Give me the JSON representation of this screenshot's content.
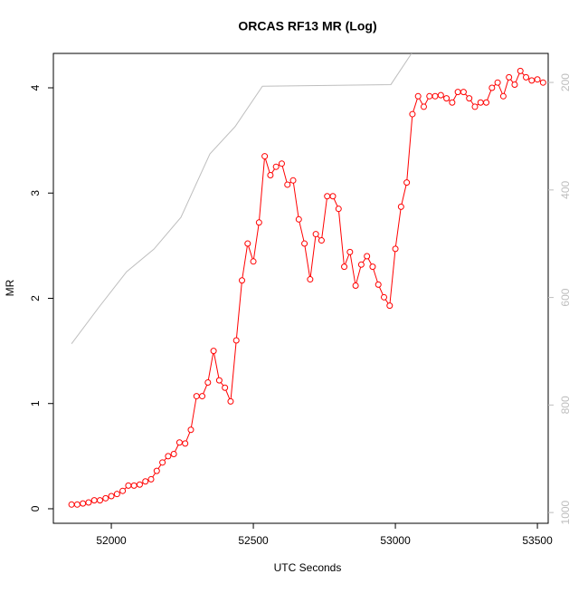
{
  "chart_data": {
    "type": "line",
    "title": "ORCAS RF13 MR (Log)",
    "x_label": "UTC Seconds",
    "y_label": "MR",
    "xlim": [
      51796,
      53538
    ],
    "xticks": [
      52000,
      52500,
      53000,
      53500
    ],
    "ylim": [
      -0.138,
      4.327
    ],
    "yticks": [
      0,
      1,
      2,
      3,
      4
    ],
    "y2lim": [
      1020,
      146
    ],
    "y2ticks": [
      200,
      400,
      600,
      800,
      1000
    ],
    "series": [
      {
        "color": "#ff0000",
        "marker": "circle",
        "x": [
          51860,
          51880,
          51900,
          51920,
          51940,
          51960,
          51980,
          52000,
          52020,
          52040,
          52060,
          52080,
          52100,
          52120,
          52140,
          52160,
          52180,
          52200,
          52220,
          52240,
          52260,
          52280,
          52300,
          52320,
          52340,
          52360,
          52380,
          52400,
          52420,
          52440,
          52460,
          52480,
          52500,
          52520,
          52540,
          52560,
          52580,
          52600,
          52620,
          52640,
          52660,
          52680,
          52700,
          52720,
          52740,
          52760,
          52780,
          52800,
          52820,
          52840,
          52860,
          52880,
          52900,
          52920,
          52940,
          52960,
          52980,
          53000,
          53020,
          53040,
          53060,
          53080,
          53100,
          53120,
          53140,
          53160,
          53180,
          53200,
          53220,
          53240,
          53260,
          53280,
          53300,
          53320,
          53340,
          53360,
          53380,
          53400,
          53420,
          53440,
          53460,
          53480,
          53500,
          53520
        ],
        "values": [
          0.04,
          0.04,
          0.05,
          0.06,
          0.08,
          0.08,
          0.1,
          0.12,
          0.14,
          0.17,
          0.22,
          0.22,
          0.23,
          0.26,
          0.28,
          0.36,
          0.44,
          0.5,
          0.52,
          0.63,
          0.62,
          0.75,
          1.07,
          1.07,
          1.2,
          1.5,
          1.22,
          1.15,
          1.02,
          1.6,
          2.17,
          2.52,
          2.35,
          2.72,
          3.35,
          3.17,
          3.25,
          3.28,
          3.08,
          3.12,
          2.75,
          2.52,
          2.18,
          2.61,
          2.55,
          2.97,
          2.97,
          2.85,
          2.3,
          2.44,
          2.12,
          2.32,
          2.4,
          2.3,
          2.13,
          2.01,
          1.93,
          2.47,
          2.87,
          3.1,
          3.75,
          3.92,
          3.82,
          3.92,
          3.92,
          3.93,
          3.9,
          3.86,
          3.96,
          3.96,
          3.9,
          3.82,
          3.86,
          3.86,
          4.0,
          4.05,
          3.92,
          4.1,
          4.03,
          4.16,
          4.1,
          4.07,
          4.08,
          4.05
        ]
      },
      {
        "color": "#bebebe",
        "axis": "y2",
        "x": [
          51860,
          51955,
          52054,
          52150,
          52245,
          52347,
          52436,
          52532,
          52984,
          53057
        ],
        "values": [
          686,
          619,
          552,
          510,
          451,
          333,
          282,
          207,
          204,
          146
        ]
      }
    ]
  }
}
